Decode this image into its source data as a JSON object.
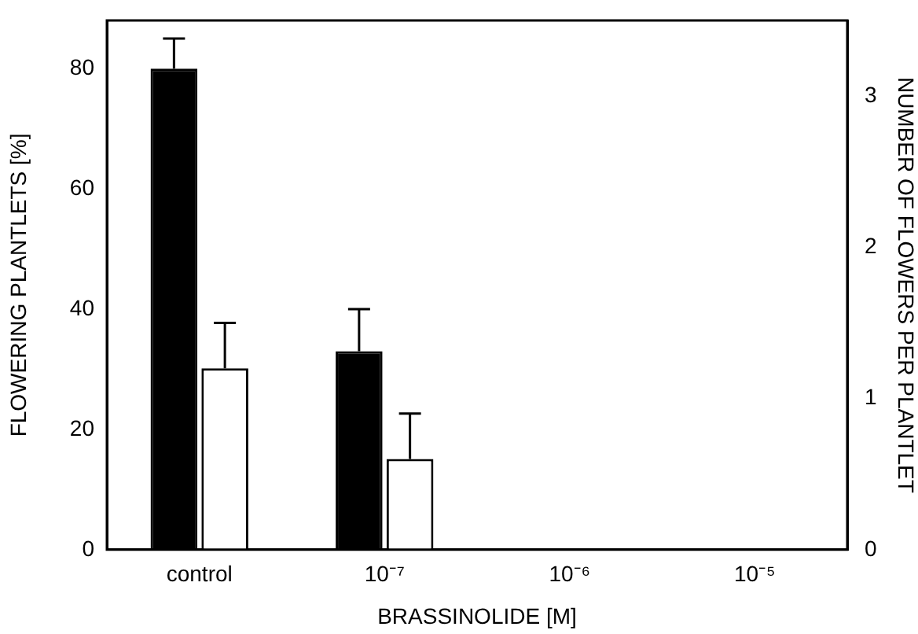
{
  "chart_data": {
    "type": "bar",
    "xlabel": "BRASSINOLIDE [M]",
    "ylabel": "FLOWERING PLANTLETS [%]",
    "y2label": "NUMBER OF FLOWERS PER PLANTLET",
    "categories": [
      "control",
      "10⁻⁷",
      "10⁻⁶",
      "10⁻⁵"
    ],
    "series": [
      {
        "color": "#000000",
        "values": [
          80,
          33,
          0,
          0
        ],
        "errors": [
          [
            80,
            85
          ],
          [
            33,
            40
          ],
          null,
          null
        ]
      },
      {
        "color": "#ffffff",
        "axis": "y2",
        "values": [
          1.2,
          0.6,
          0,
          0
        ],
        "errors": [
          [
            1.2,
            1.5
          ],
          [
            0.6,
            0.9
          ],
          null,
          null
        ]
      }
    ],
    "ylim": [
      0,
      88
    ],
    "yticks": [
      0,
      20,
      40,
      60,
      80
    ],
    "y2lim": [
      0,
      3.5
    ],
    "y2ticks": [
      0,
      1,
      2,
      3
    ],
    "grid": false,
    "legend": false
  }
}
